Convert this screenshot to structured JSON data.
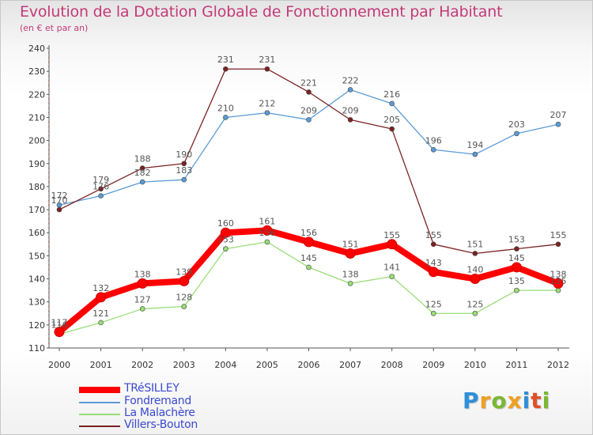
{
  "header": {
    "title": "Evolution de la Dotation Globale de Fonctionnement par Habitant",
    "subtitle": "(en € et par an)"
  },
  "chart_data": {
    "type": "line",
    "title": "Evolution de la Dotation Globale de Fonctionnement par Habitant",
    "subtitle": "(en € et par an)",
    "x": [
      "2000",
      "2001",
      "2002",
      "2003",
      "2004",
      "2005",
      "2006",
      "2007",
      "2008",
      "2009",
      "2010",
      "2011",
      "2012"
    ],
    "ylim": [
      110,
      240
    ],
    "yticks": [
      110,
      120,
      130,
      140,
      150,
      160,
      170,
      180,
      190,
      200,
      210,
      220,
      230,
      240
    ],
    "grid": false,
    "legend_position": "bottom-left",
    "series": [
      {
        "name": "TRéSILLEY",
        "color": "#ff0000",
        "values": [
          117,
          132,
          138,
          139,
          160,
          161,
          156,
          151,
          155,
          143,
          140,
          145,
          138
        ]
      },
      {
        "name": "Fondremand",
        "color": "#5b9bd5",
        "values": [
          172,
          176,
          182,
          183,
          210,
          212,
          209,
          222,
          216,
          196,
          194,
          203,
          207
        ]
      },
      {
        "name": "La Malachère",
        "color": "#99dd77",
        "values": [
          116,
          121,
          127,
          128,
          153,
          156,
          145,
          138,
          141,
          125,
          125,
          135,
          135
        ]
      },
      {
        "name": "Villers-Bouton",
        "color": "#7a2222",
        "values": [
          170,
          179,
          188,
          190,
          231,
          231,
          221,
          209,
          205,
          155,
          151,
          153,
          155
        ]
      }
    ]
  },
  "logo": {
    "letters": [
      "P",
      "r",
      "o",
      "x",
      "i",
      "t",
      "i"
    ],
    "colors": [
      "#2f8fd8",
      "#f0a020",
      "#7ab833",
      "#f0a020",
      "#2f8fd8",
      "#e0502a",
      "#7ab833"
    ]
  }
}
